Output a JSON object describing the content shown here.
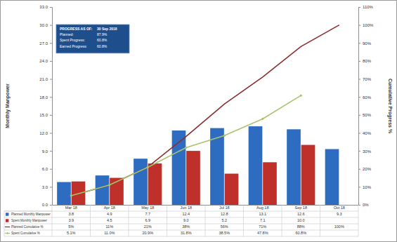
{
  "chart_data": {
    "type": "bar",
    "y_label": "Monthly Manpower",
    "y2_label": "Cumulative Progress %",
    "categories": [
      "Mar 18",
      "Apr 18",
      "May 18",
      "Jun 18",
      "Jul 18",
      "Aug 18",
      "Sep 18",
      "Oct 18"
    ],
    "series": [
      {
        "name": "Planned Monthly Manpower",
        "type": "bar",
        "color": "#2e6cc2",
        "values": [
          3.8,
          4.9,
          7.7,
          12.4,
          12.8,
          13.1,
          12.6,
          9.3
        ],
        "value_labels": [
          "3.8",
          "4.9",
          "7.7",
          "12.4",
          "12.8",
          "13.1",
          "12.6",
          "9.3"
        ]
      },
      {
        "name": "Spent Monthly Manpower",
        "type": "bar",
        "color": "#c0302a",
        "values": [
          3.9,
          4.5,
          6.9,
          9.0,
          5.2,
          7.1,
          10.0,
          null
        ],
        "value_labels": [
          "3.9",
          "4.5",
          "6.9",
          "9.0",
          "5.2",
          "7.1",
          "10.0",
          null
        ]
      },
      {
        "name": "Planned Cumulative %",
        "type": "line",
        "axis": "y2",
        "color": "#8b2d2d",
        "line_style": "solid",
        "marker": "none",
        "values": [
          5,
          11,
          21,
          38,
          56,
          71,
          88,
          100
        ],
        "value_labels": [
          "5%",
          "11%",
          "21%",
          "38%",
          "56%",
          "71%",
          "88%",
          "100%"
        ]
      },
      {
        "name": "Spent Cumulative %",
        "type": "line",
        "axis": "y2",
        "color": "#a9c46c",
        "line_style": "solid",
        "marker": "circle",
        "values": [
          5.1,
          11.0,
          20.9,
          31.8,
          38.5,
          47.8,
          60.8,
          null
        ],
        "value_labels": [
          "5.1%",
          "11.0%",
          "20.9%",
          "31.8%",
          "38.5%",
          "47.8%",
          "60.8%",
          null
        ]
      }
    ],
    "ylim": [
      0,
      33
    ],
    "yticks": [
      {
        "value": 0,
        "label": "0.0"
      },
      {
        "value": 3,
        "label": "3.0"
      },
      {
        "value": 6,
        "label": "6.0"
      },
      {
        "value": 9,
        "label": "9.0"
      },
      {
        "value": 12,
        "label": "12.0"
      },
      {
        "value": 15,
        "label": "15.0"
      },
      {
        "value": 18,
        "label": "18.0"
      },
      {
        "value": 21,
        "label": "21.0"
      },
      {
        "value": 24,
        "label": "24.0"
      },
      {
        "value": 27,
        "label": "27.0"
      },
      {
        "value": 30,
        "label": "30.0"
      },
      {
        "value": 33,
        "label": "33.0"
      }
    ],
    "y2lim": [
      0,
      110
    ],
    "y2ticks": [
      {
        "value": 0,
        "label": "0%"
      },
      {
        "value": 10,
        "label": "10%"
      },
      {
        "value": 20,
        "label": "20%"
      },
      {
        "value": 30,
        "label": "30%"
      },
      {
        "value": 40,
        "label": "40%"
      },
      {
        "value": 50,
        "label": "50%"
      },
      {
        "value": 60,
        "label": "60%"
      },
      {
        "value": 70,
        "label": "70%"
      },
      {
        "value": 80,
        "label": "80%"
      },
      {
        "value": 90,
        "label": "90%"
      },
      {
        "value": 100,
        "label": "100%"
      },
      {
        "value": 110,
        "label": "110%"
      }
    ],
    "grid": false,
    "data_labels": true,
    "annotations": [
      [
        "PROGRESS AS OF:",
        "30 Sep 2018"
      ],
      [
        "Planned:",
        "87.9%"
      ],
      [
        "Spent Progress:",
        "60.8%"
      ],
      [
        "Earned Progress:",
        "60.8%"
      ]
    ]
  }
}
